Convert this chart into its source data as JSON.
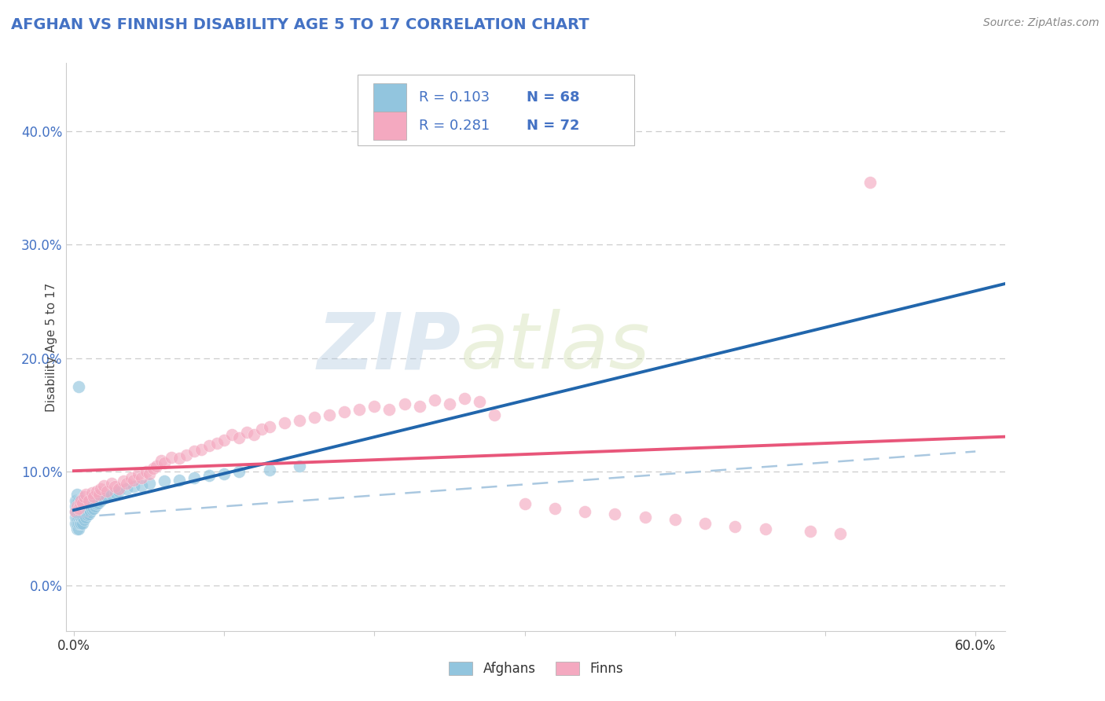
{
  "title": "AFGHAN VS FINNISH DISABILITY AGE 5 TO 17 CORRELATION CHART",
  "source": "Source: ZipAtlas.com",
  "ylabel": "Disability Age 5 to 17",
  "xlim": [
    -0.005,
    0.62
  ],
  "ylim": [
    -0.04,
    0.46
  ],
  "xticks": [
    0.0,
    0.1,
    0.2,
    0.3,
    0.4,
    0.5,
    0.6
  ],
  "xticklabels": [
    "0.0%",
    "",
    "",
    "",
    "",
    "",
    "60.0%"
  ],
  "yticks": [
    0.0,
    0.1,
    0.2,
    0.3,
    0.4
  ],
  "yticklabels": [
    "0.0%",
    "10.0%",
    "20.0%",
    "30.0%",
    "40.0%"
  ],
  "afghan_color": "#92c5de",
  "finn_color": "#f4a9c0",
  "afghan_line_color": "#2166ac",
  "finn_line_color": "#e8567a",
  "afghan_R": 0.103,
  "afghan_N": 68,
  "finn_R": 0.281,
  "finn_N": 72,
  "watermark_zip": "ZIP",
  "watermark_atlas": "atlas",
  "background_color": "#ffffff",
  "grid_color": "#cccccc",
  "title_color": "#4472c4",
  "source_color": "#888888",
  "legend_text_color": "#4472c4",
  "ytick_color": "#4472c4",
  "xtick_color": "#333333",
  "afghan_x": [
    0.001,
    0.001,
    0.001,
    0.001,
    0.001,
    0.002,
    0.002,
    0.002,
    0.002,
    0.002,
    0.002,
    0.002,
    0.003,
    0.003,
    0.003,
    0.003,
    0.003,
    0.003,
    0.004,
    0.004,
    0.004,
    0.004,
    0.004,
    0.005,
    0.005,
    0.005,
    0.005,
    0.006,
    0.006,
    0.006,
    0.006,
    0.007,
    0.007,
    0.007,
    0.008,
    0.008,
    0.008,
    0.009,
    0.009,
    0.01,
    0.01,
    0.011,
    0.011,
    0.012,
    0.013,
    0.013,
    0.014,
    0.015,
    0.016,
    0.018,
    0.02,
    0.022,
    0.025,
    0.028,
    0.03,
    0.035,
    0.04,
    0.045,
    0.05,
    0.06,
    0.07,
    0.08,
    0.09,
    0.1,
    0.11,
    0.13,
    0.15,
    0.003
  ],
  "afghan_y": [
    0.055,
    0.06,
    0.065,
    0.07,
    0.075,
    0.05,
    0.055,
    0.06,
    0.065,
    0.07,
    0.075,
    0.08,
    0.05,
    0.055,
    0.06,
    0.065,
    0.07,
    0.075,
    0.055,
    0.06,
    0.065,
    0.07,
    0.075,
    0.055,
    0.06,
    0.065,
    0.07,
    0.055,
    0.06,
    0.065,
    0.07,
    0.058,
    0.063,
    0.068,
    0.06,
    0.065,
    0.07,
    0.062,
    0.067,
    0.063,
    0.068,
    0.065,
    0.07,
    0.067,
    0.068,
    0.073,
    0.07,
    0.072,
    0.073,
    0.075,
    0.077,
    0.078,
    0.08,
    0.082,
    0.083,
    0.085,
    0.087,
    0.088,
    0.09,
    0.092,
    0.093,
    0.095,
    0.097,
    0.098,
    0.1,
    0.102,
    0.105,
    0.175
  ],
  "finn_x": [
    0.001,
    0.002,
    0.003,
    0.004,
    0.005,
    0.006,
    0.007,
    0.008,
    0.01,
    0.012,
    0.013,
    0.015,
    0.017,
    0.018,
    0.02,
    0.022,
    0.025,
    0.027,
    0.03,
    0.033,
    0.035,
    0.038,
    0.04,
    0.043,
    0.045,
    0.048,
    0.05,
    0.053,
    0.055,
    0.058,
    0.06,
    0.065,
    0.07,
    0.075,
    0.08,
    0.085,
    0.09,
    0.095,
    0.1,
    0.105,
    0.11,
    0.115,
    0.12,
    0.125,
    0.13,
    0.14,
    0.15,
    0.16,
    0.17,
    0.18,
    0.19,
    0.2,
    0.21,
    0.22,
    0.23,
    0.24,
    0.25,
    0.26,
    0.27,
    0.28,
    0.3,
    0.32,
    0.34,
    0.36,
    0.38,
    0.4,
    0.42,
    0.44,
    0.46,
    0.49,
    0.51,
    0.53
  ],
  "finn_y": [
    0.065,
    0.07,
    0.068,
    0.072,
    0.075,
    0.073,
    0.078,
    0.08,
    0.075,
    0.082,
    0.078,
    0.083,
    0.08,
    0.085,
    0.088,
    0.083,
    0.09,
    0.087,
    0.085,
    0.092,
    0.09,
    0.095,
    0.093,
    0.098,
    0.095,
    0.1,
    0.098,
    0.103,
    0.105,
    0.11,
    0.108,
    0.113,
    0.112,
    0.115,
    0.118,
    0.12,
    0.123,
    0.125,
    0.128,
    0.133,
    0.13,
    0.135,
    0.133,
    0.138,
    0.14,
    0.143,
    0.145,
    0.148,
    0.15,
    0.153,
    0.155,
    0.158,
    0.155,
    0.16,
    0.158,
    0.163,
    0.16,
    0.165,
    0.162,
    0.15,
    0.072,
    0.068,
    0.065,
    0.063,
    0.06,
    0.058,
    0.055,
    0.052,
    0.05,
    0.048,
    0.046,
    0.355
  ],
  "dashed_line_x0": 0.0,
  "dashed_line_x1": 0.6,
  "dashed_line_y0": 0.06,
  "dashed_line_y1": 0.118
}
